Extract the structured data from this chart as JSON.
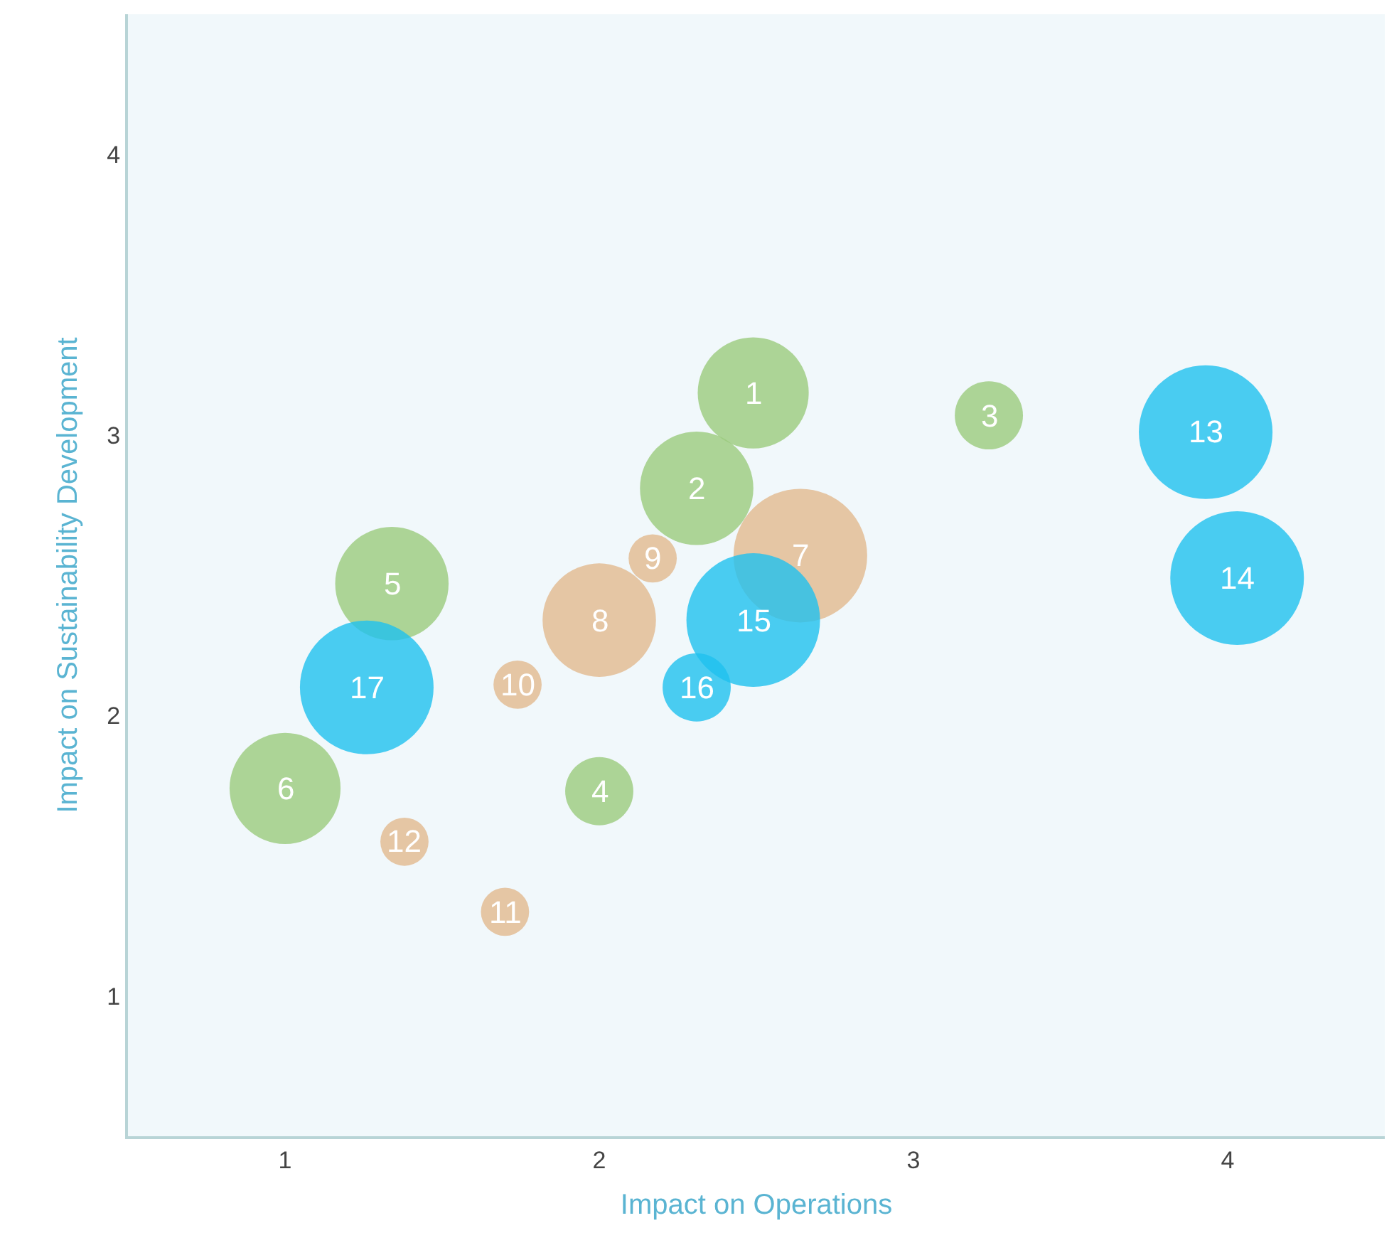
{
  "chart_data": {
    "type": "bubble",
    "xlabel": "Impact on Operations",
    "ylabel": "Impact on Sustainability Development",
    "xlim": [
      0.5,
      4.5
    ],
    "ylim": [
      0.5,
      4.5
    ],
    "xticks": [
      1,
      2,
      3,
      4
    ],
    "yticks": [
      1,
      2,
      3,
      4
    ],
    "series": [
      {
        "color": "#9bcb7d",
        "x": [
          2.49,
          2.31,
          3.24,
          2.0,
          1.34,
          1.0
        ],
        "values": [
          3.15,
          2.81,
          3.07,
          1.73,
          2.47,
          1.74
        ],
        "sizes": [
          0.69,
          0.72,
          0.26,
          0.26,
          0.72,
          0.69
        ]
      },
      {
        "color": "#e2b98f",
        "x": [
          2.64,
          2.0,
          2.17,
          1.74,
          1.7,
          1.38
        ],
        "values": [
          2.57,
          2.34,
          2.56,
          2.11,
          1.3,
          1.55
        ],
        "sizes": [
          1,
          0.72,
          0.13,
          0.13,
          0.13,
          0.13
        ]
      },
      {
        "color": "#1fc0ef",
        "x": [
          3.93,
          4.03,
          2.49,
          2.31,
          1.26
        ],
        "values": [
          3.01,
          2.49,
          2.34,
          2.1,
          2.1
        ],
        "sizes": [
          1,
          1,
          1,
          0.26,
          1
        ]
      }
    ],
    "annotations": [
      {
        "text": "1",
        "x": 2.49,
        "y": 3.15
      },
      {
        "text": "2",
        "x": 2.31,
        "y": 2.81
      },
      {
        "text": "3",
        "x": 3.24,
        "y": 3.07
      },
      {
        "text": "4",
        "x": 2.0,
        "y": 1.73
      },
      {
        "text": "5",
        "x": 1.34,
        "y": 2.47
      },
      {
        "text": "6",
        "x": 1.0,
        "y": 1.74
      },
      {
        "text": "7",
        "x": 2.64,
        "y": 2.57
      },
      {
        "text": "8",
        "x": 2.0,
        "y": 2.34
      },
      {
        "text": "9",
        "x": 2.17,
        "y": 2.56
      },
      {
        "text": "10",
        "x": 1.74,
        "y": 2.11
      },
      {
        "text": "11",
        "x": 1.7,
        "y": 1.3
      },
      {
        "text": "12",
        "x": 1.38,
        "y": 1.55
      },
      {
        "text": "13",
        "x": 3.93,
        "y": 3.01
      },
      {
        "text": "14",
        "x": 4.03,
        "y": 2.49
      },
      {
        "text": "15",
        "x": 2.49,
        "y": 2.34
      },
      {
        "text": "16",
        "x": 2.31,
        "y": 2.1
      },
      {
        "text": "17",
        "x": 1.26,
        "y": 2.1
      }
    ]
  }
}
